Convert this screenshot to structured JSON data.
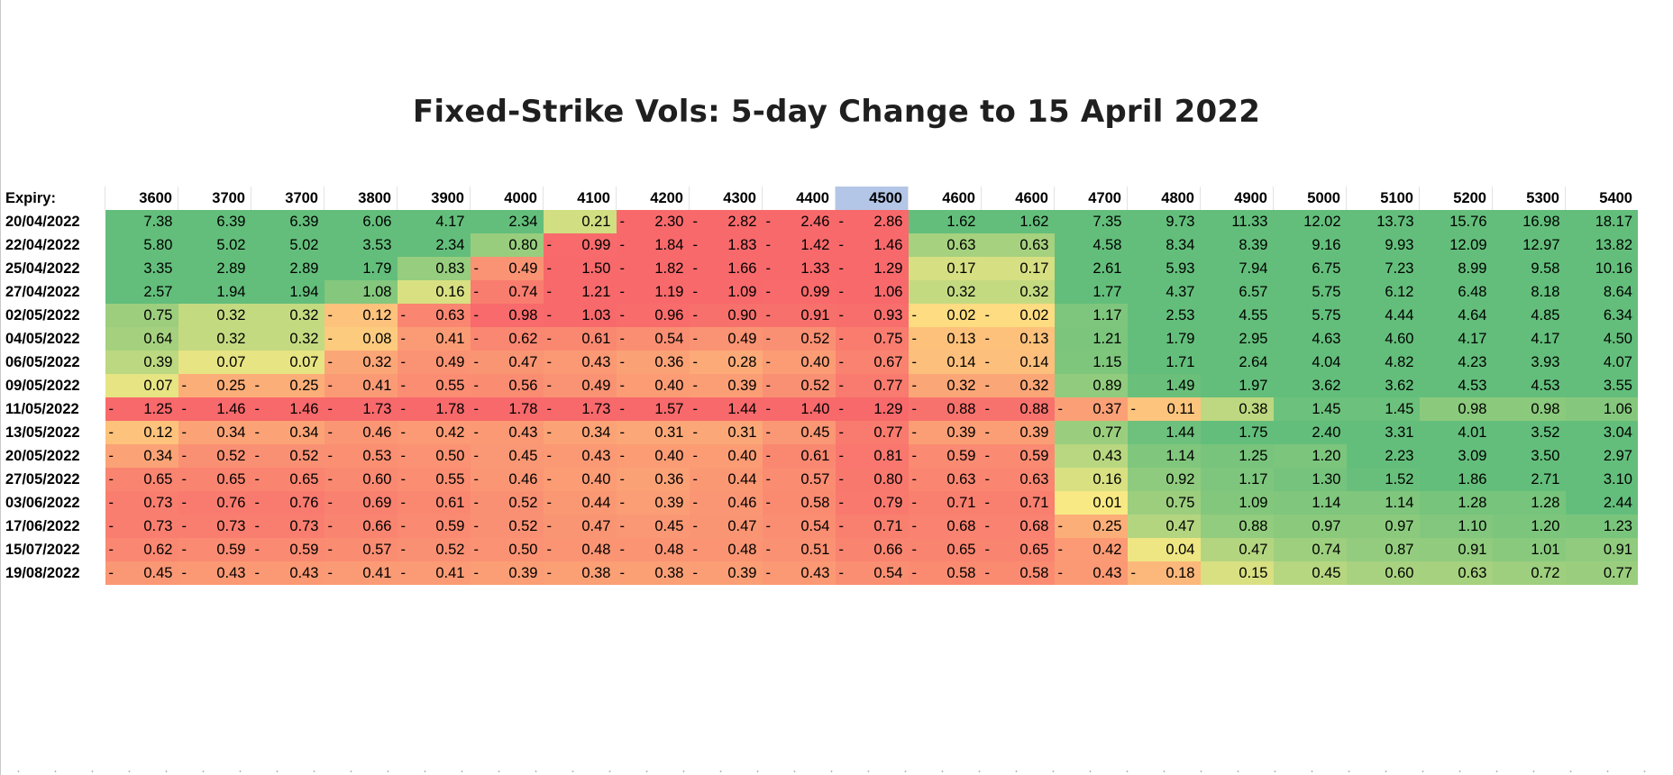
{
  "chart_data": {
    "type": "heatmap",
    "title": "Fixed-Strike Vols: 5-day Change to 15 April 2022",
    "row_header": "Expiry:",
    "columns": [
      "3600",
      "3700",
      "3700",
      "3800",
      "3900",
      "4000",
      "4100",
      "4200",
      "4300",
      "4400",
      "4500",
      "4600",
      "4600",
      "4700",
      "4800",
      "4900",
      "5000",
      "5100",
      "5200",
      "5300",
      "5400"
    ],
    "highlight_column": "4500",
    "rows": [
      {
        "label": "20/04/2022",
        "values": [
          7.38,
          6.39,
          6.39,
          6.06,
          4.17,
          2.34,
          0.21,
          -2.3,
          -2.82,
          -2.46,
          -2.86,
          1.62,
          1.62,
          7.35,
          9.73,
          11.33,
          12.02,
          13.73,
          15.76,
          16.98,
          18.17
        ]
      },
      {
        "label": "22/04/2022",
        "values": [
          5.8,
          5.02,
          5.02,
          3.53,
          2.34,
          0.8,
          -0.99,
          -1.84,
          -1.83,
          -1.42,
          -1.46,
          0.63,
          0.63,
          4.58,
          8.34,
          8.39,
          9.16,
          9.93,
          12.09,
          12.97,
          13.82
        ]
      },
      {
        "label": "25/04/2022",
        "values": [
          3.35,
          2.89,
          2.89,
          1.79,
          0.83,
          -0.49,
          -1.5,
          -1.82,
          -1.66,
          -1.33,
          -1.29,
          0.17,
          0.17,
          2.61,
          5.93,
          7.94,
          6.75,
          7.23,
          8.99,
          9.58,
          10.16
        ]
      },
      {
        "label": "27/04/2022",
        "values": [
          2.57,
          1.94,
          1.94,
          1.08,
          0.16,
          -0.74,
          -1.21,
          -1.19,
          -1.09,
          -0.99,
          -1.06,
          0.32,
          0.32,
          1.77,
          4.37,
          6.57,
          5.75,
          6.12,
          6.48,
          8.18,
          8.64
        ]
      },
      {
        "label": "02/05/2022",
        "values": [
          0.75,
          0.32,
          0.32,
          -0.12,
          -0.63,
          -0.98,
          -1.03,
          -0.96,
          -0.9,
          -0.91,
          -0.93,
          -0.02,
          -0.02,
          1.17,
          2.53,
          4.55,
          5.75,
          4.44,
          4.64,
          4.85,
          6.34
        ]
      },
      {
        "label": "04/05/2022",
        "values": [
          0.64,
          0.32,
          0.32,
          -0.08,
          -0.41,
          -0.62,
          -0.61,
          -0.54,
          -0.49,
          -0.52,
          -0.75,
          -0.13,
          -0.13,
          1.21,
          1.79,
          2.95,
          4.63,
          4.6,
          4.17,
          4.17,
          4.5
        ]
      },
      {
        "label": "06/05/2022",
        "values": [
          0.39,
          0.07,
          0.07,
          -0.32,
          -0.49,
          -0.47,
          -0.43,
          -0.36,
          -0.28,
          -0.4,
          -0.67,
          -0.14,
          -0.14,
          1.15,
          1.71,
          2.64,
          4.04,
          4.82,
          4.23,
          3.93,
          4.07
        ]
      },
      {
        "label": "09/05/2022",
        "values": [
          0.07,
          -0.25,
          -0.25,
          -0.41,
          -0.55,
          -0.56,
          -0.49,
          -0.4,
          -0.39,
          -0.52,
          -0.77,
          -0.32,
          -0.32,
          0.89,
          1.49,
          1.97,
          3.62,
          3.62,
          4.53,
          4.53,
          3.55
        ]
      },
      {
        "label": "11/05/2022",
        "values": [
          -1.25,
          -1.46,
          -1.46,
          -1.73,
          -1.78,
          -1.78,
          -1.73,
          -1.57,
          -1.44,
          -1.4,
          -1.29,
          -0.88,
          -0.88,
          -0.37,
          -0.11,
          0.38,
          1.45,
          1.45,
          0.98,
          0.98,
          1.06
        ]
      },
      {
        "label": "13/05/2022",
        "values": [
          -0.12,
          -0.34,
          -0.34,
          -0.46,
          -0.42,
          -0.43,
          -0.34,
          -0.31,
          -0.31,
          -0.45,
          -0.77,
          -0.39,
          -0.39,
          0.77,
          1.44,
          1.75,
          2.4,
          3.31,
          4.01,
          3.52,
          3.04
        ]
      },
      {
        "label": "20/05/2022",
        "values": [
          -0.34,
          -0.52,
          -0.52,
          -0.53,
          -0.5,
          -0.45,
          -0.43,
          -0.4,
          -0.4,
          -0.61,
          -0.81,
          -0.59,
          -0.59,
          0.43,
          1.14,
          1.25,
          1.2,
          2.23,
          3.09,
          3.5,
          2.97
        ]
      },
      {
        "label": "27/05/2022",
        "values": [
          -0.65,
          -0.65,
          -0.65,
          -0.6,
          -0.55,
          -0.46,
          -0.4,
          -0.36,
          -0.44,
          -0.57,
          -0.8,
          -0.63,
          -0.63,
          0.16,
          0.92,
          1.17,
          1.3,
          1.52,
          1.86,
          2.71,
          3.1
        ]
      },
      {
        "label": "03/06/2022",
        "values": [
          -0.73,
          -0.76,
          -0.76,
          -0.69,
          -0.61,
          -0.52,
          -0.44,
          -0.39,
          -0.46,
          -0.58,
          -0.79,
          -0.71,
          -0.71,
          0.01,
          0.75,
          1.09,
          1.14,
          1.14,
          1.28,
          1.28,
          2.44
        ]
      },
      {
        "label": "17/06/2022",
        "values": [
          -0.73,
          -0.73,
          -0.73,
          -0.66,
          -0.59,
          -0.52,
          -0.47,
          -0.45,
          -0.47,
          -0.54,
          -0.71,
          -0.68,
          -0.68,
          -0.25,
          0.47,
          0.88,
          0.97,
          0.97,
          1.1,
          1.2,
          1.23
        ]
      },
      {
        "label": "15/07/2022",
        "values": [
          -0.62,
          -0.59,
          -0.59,
          -0.57,
          -0.52,
          -0.5,
          -0.48,
          -0.48,
          -0.48,
          -0.51,
          -0.66,
          -0.65,
          -0.65,
          -0.42,
          0.04,
          0.47,
          0.74,
          0.87,
          0.91,
          1.01,
          0.91
        ]
      },
      {
        "label": "19/08/2022",
        "values": [
          -0.45,
          -0.43,
          -0.43,
          -0.41,
          -0.41,
          -0.39,
          -0.38,
          -0.38,
          -0.39,
          -0.43,
          -0.54,
          -0.58,
          -0.58,
          -0.43,
          -0.18,
          0.15,
          0.45,
          0.6,
          0.63,
          0.72,
          0.77
        ]
      }
    ],
    "color_scale": {
      "min_color": "#f8696b",
      "mid_color": "#ffeb84",
      "max_color": "#63be7b"
    },
    "highlight_color": "#b4c6e7"
  }
}
